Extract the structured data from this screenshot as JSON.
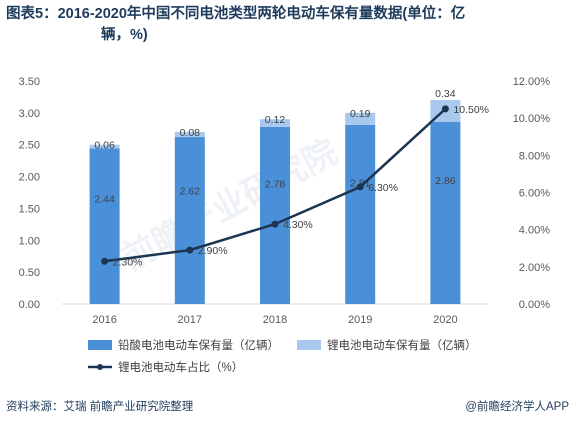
{
  "title_line1": "图表5：2016-2020年中国不同电池类型两轮电动车保有量数据(单位：亿",
  "title_line2": "辆，%)",
  "source": "资料来源：艾瑞 前瞻产业研究院整理",
  "credit": "@前瞻经济学人APP",
  "watermark_text": "前瞻产业研究院",
  "colors": {
    "lead_bar": "#4a90d9",
    "lithium_bar": "#a9c8ee",
    "line": "#1c3553",
    "axis_text": "#595959",
    "grid": "#e6e6e6",
    "title": "#1f3b5c"
  },
  "chart_data": {
    "type": "bar",
    "categories": [
      "2016",
      "2017",
      "2018",
      "2019",
      "2020"
    ],
    "series": [
      {
        "name": "铅酸电池电动车保有量（亿辆）",
        "type": "bar",
        "axis": "left",
        "values": [
          2.44,
          2.62,
          2.78,
          2.81,
          2.86
        ],
        "labels": [
          "2.44",
          "2.62",
          "2.78",
          "2.81",
          "2.86"
        ]
      },
      {
        "name": "锂电池电动车保有量（亿辆）",
        "type": "bar",
        "axis": "left",
        "values": [
          0.06,
          0.08,
          0.12,
          0.19,
          0.34
        ],
        "labels": [
          "0.06",
          "0.08",
          "0.12",
          "0.19",
          "0.34"
        ]
      },
      {
        "name": "锂电池电动车占比（%）",
        "type": "line",
        "axis": "right",
        "values": [
          2.3,
          2.9,
          4.3,
          6.3,
          10.5
        ],
        "labels": [
          "2.30%",
          "2.90%",
          "4.30%",
          "6.30%",
          "10.50%"
        ]
      }
    ],
    "y_left": {
      "min": 0,
      "max": 3.5,
      "ticks": [
        "0.00",
        "0.50",
        "1.00",
        "1.50",
        "2.00",
        "2.50",
        "3.00",
        "3.50"
      ]
    },
    "y_right": {
      "min": 0,
      "max": 12,
      "ticks": [
        "0.00%",
        "2.00%",
        "4.00%",
        "6.00%",
        "8.00%",
        "10.00%",
        "12.00%"
      ]
    },
    "legend_position": "bottom",
    "grid": false
  }
}
